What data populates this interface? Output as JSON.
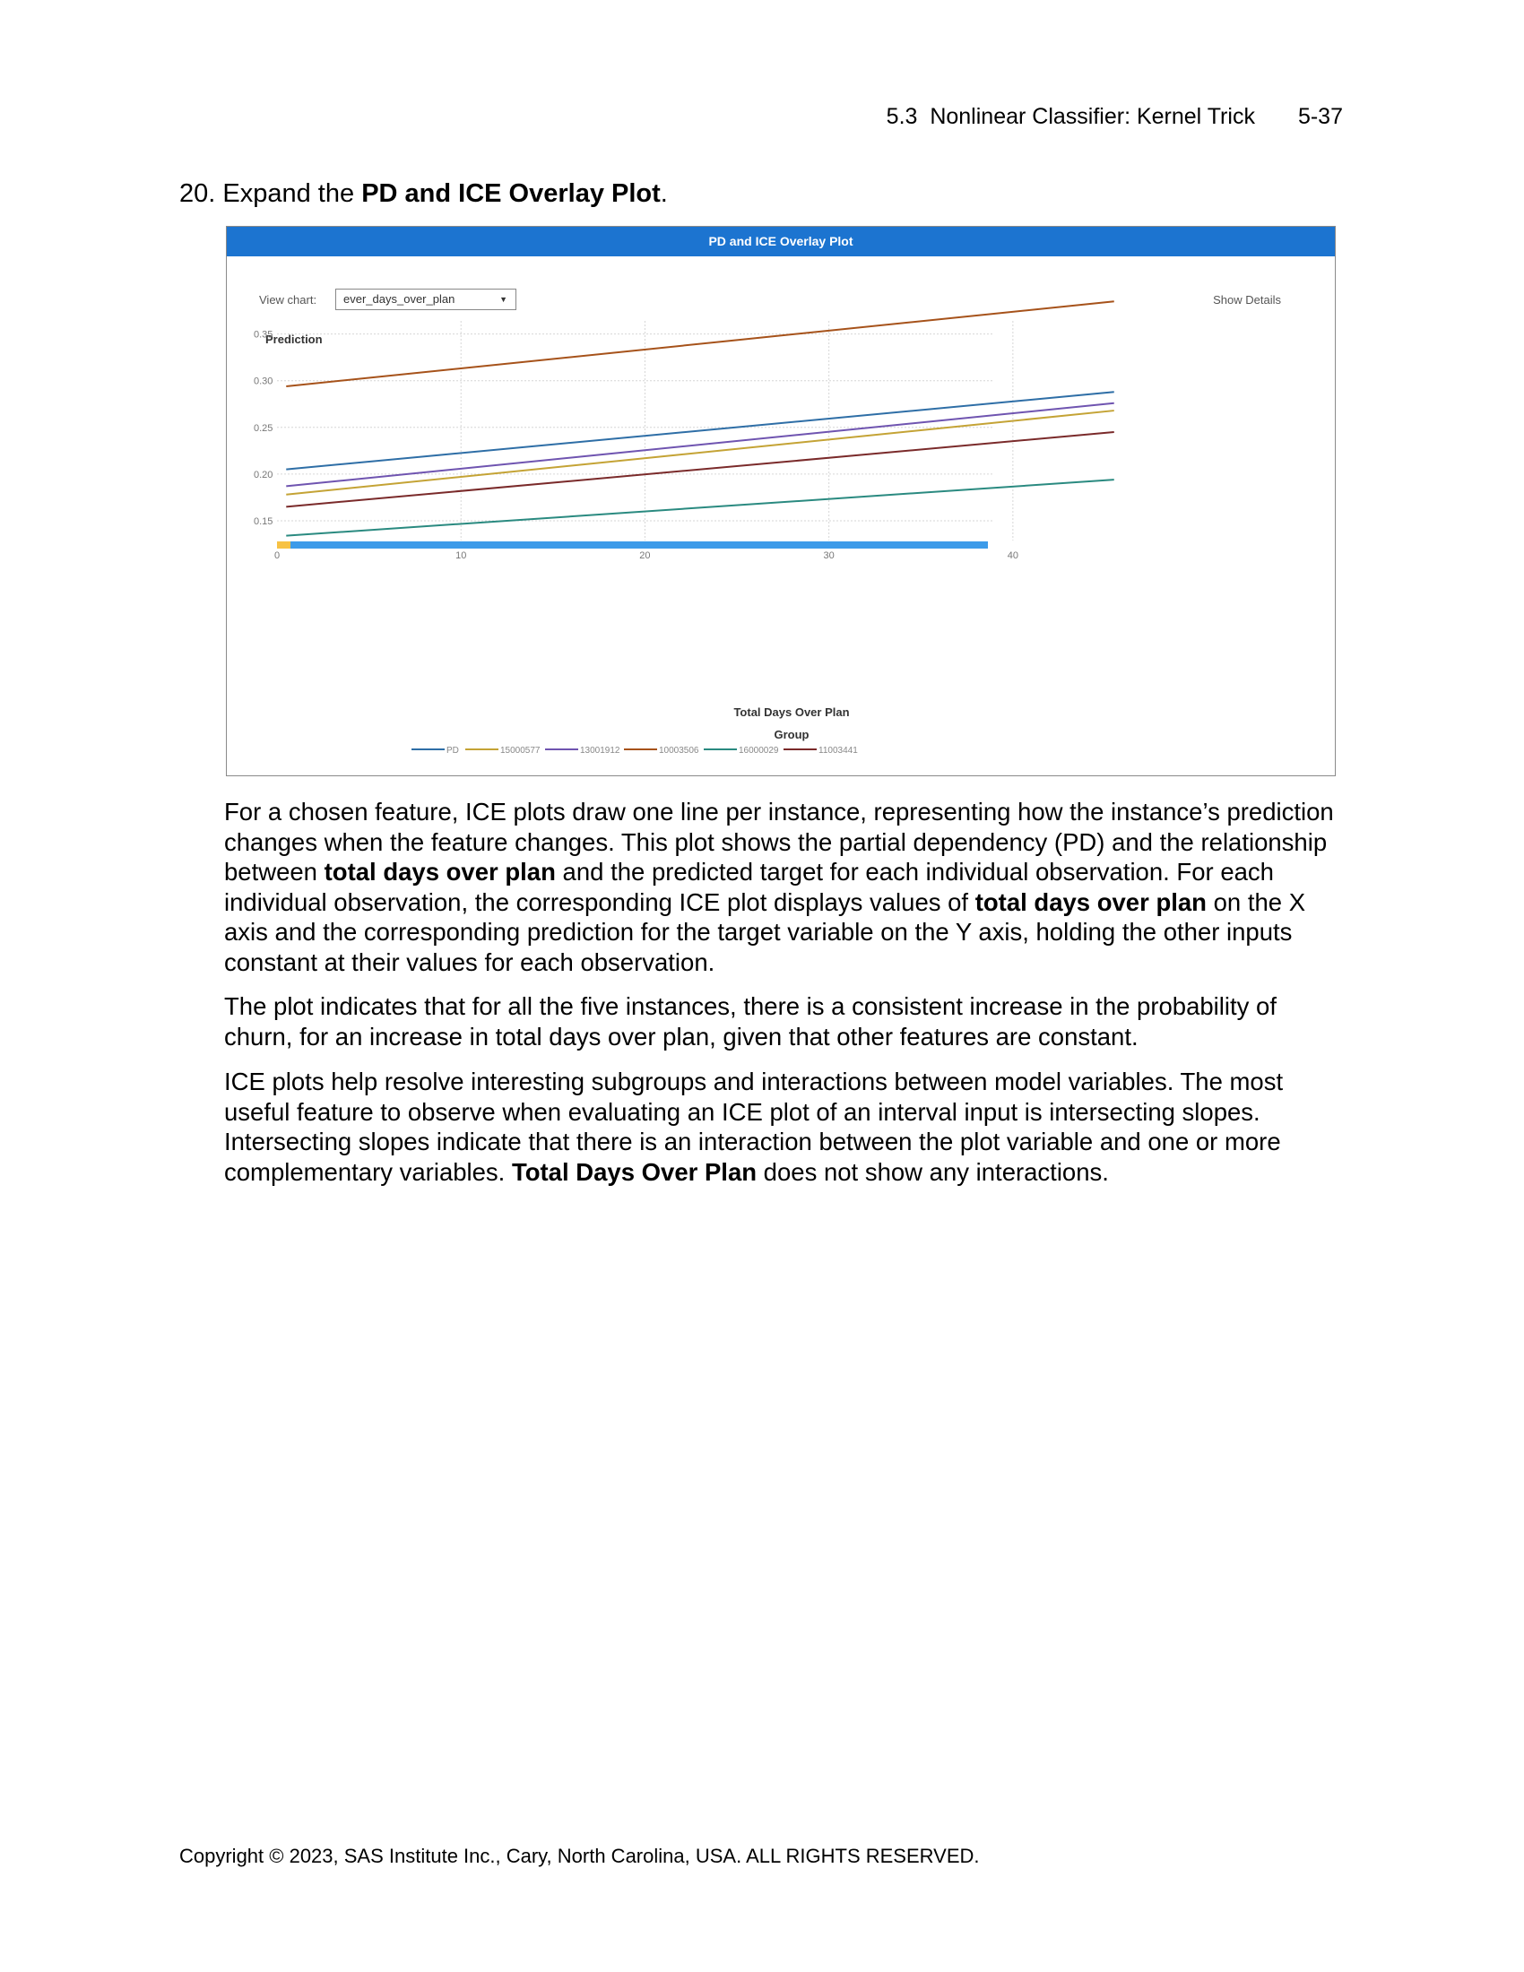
{
  "header": {
    "section": "5.3  Nonlinear Classifier: Kernel Trick",
    "page_number": "5-37"
  },
  "step": {
    "number": "20.",
    "text_before": "Expand the ",
    "bold": "PD and ICE Overlay Plot",
    "text_after": "."
  },
  "panel": {
    "title": "PD and ICE Overlay Plot",
    "view_chart_label": "View chart:",
    "view_chart_value": "ever_days_over_plan",
    "show_details": "Show Details"
  },
  "chart_data": {
    "type": "line",
    "title": "",
    "ylabel": "Prediction",
    "xlabel": "Total Days Over Plan",
    "legend_title": "Group",
    "legend_position": "bottom",
    "xlim": [
      0,
      46
    ],
    "ylim": [
      0.125,
      0.39
    ],
    "x_ticks": [
      "0",
      "10",
      "20",
      "30",
      "40"
    ],
    "y_ticks": [
      "0.15",
      "0.20",
      "0.25",
      "0.30",
      "0.35"
    ],
    "x_tick_values": [
      0,
      10,
      20,
      30,
      40
    ],
    "y_tick_values": [
      0.15,
      0.2,
      0.25,
      0.3,
      0.35
    ],
    "x": [
      0.5,
      45.5
    ],
    "series": [
      {
        "name": "PD",
        "color": "#2e6ea6",
        "values": [
          0.205,
          0.288
        ]
      },
      {
        "name": "15000577",
        "color": "#c4a335",
        "values": [
          0.178,
          0.268
        ]
      },
      {
        "name": "13001912",
        "color": "#6f54b0",
        "values": [
          0.187,
          0.276
        ]
      },
      {
        "name": "10003506",
        "color": "#a6521a",
        "values": [
          0.294,
          0.385
        ]
      },
      {
        "name": "16000029",
        "color": "#2a8a80",
        "values": [
          0.134,
          0.194
        ]
      },
      {
        "name": "11003441",
        "color": "#7a2a2a",
        "values": [
          0.165,
          0.245
        ]
      }
    ],
    "grid": true
  },
  "paragraphs": {
    "p1_a": "For a chosen feature, ICE plots draw one line per instance, representing how the instance’s prediction changes when the feature changes. This plot shows the partial dependency (PD) and the relationship between ",
    "p1_b": "total days over plan",
    "p1_c": " and the predicted target for each individual observation. For each individual observation, the corresponding ICE plot displays values of ",
    "p1_d": "total days over plan",
    "p1_e": " on the X axis and the corresponding prediction for the target variable on the Y axis, holding the other inputs constant at their values for each observation.",
    "p2": "The plot indicates that for all the five instances, there is a consistent increase in the probability of churn, for an increase in total days over plan, given that other features are constant.",
    "p3_a": "ICE plots help resolve interesting subgroups and interactions between model variables. The most useful feature to observe when evaluating an ICE plot of an interval input is intersecting slopes. Intersecting slopes indicate that there is an interaction between the plot variable and one or more complementary variables. ",
    "p3_b": "Total Days Over Plan",
    "p3_c": " does not show any interactions."
  },
  "footer": {
    "copyright": "Copyright © 2023, SAS Institute Inc., Cary, North Carolina, USA. ALL RIGHTS RESERVED."
  }
}
